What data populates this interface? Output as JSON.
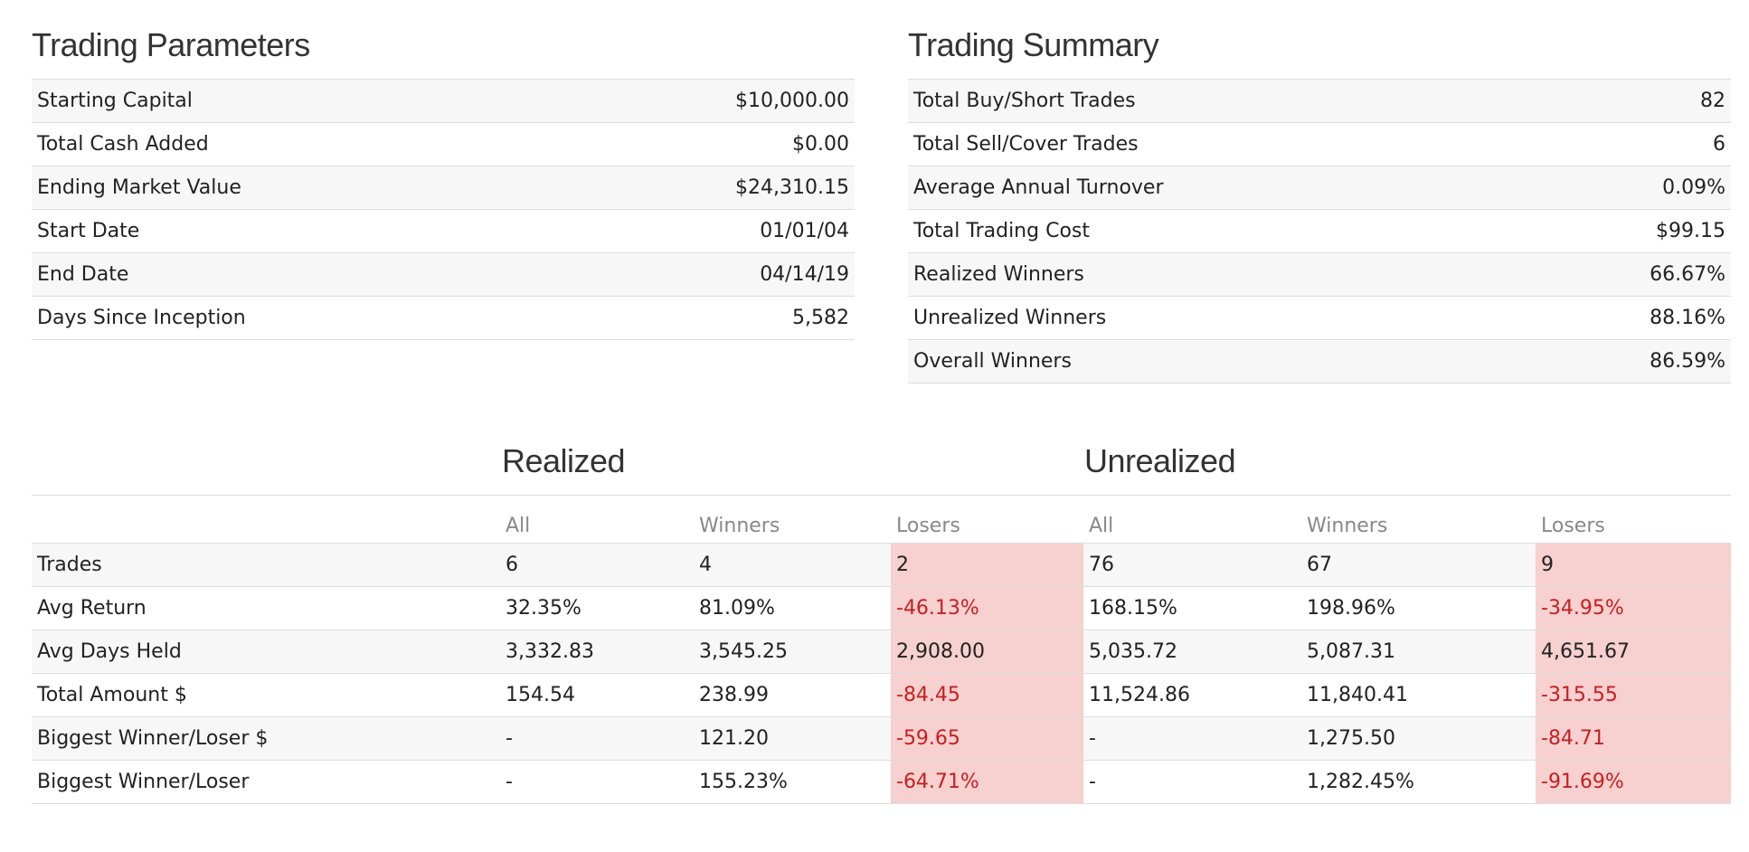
{
  "parameters": {
    "title": "Trading Parameters",
    "rows": [
      {
        "label": "Starting Capital",
        "value": "$10,000.00"
      },
      {
        "label": "Total Cash Added",
        "value": "$0.00"
      },
      {
        "label": "Ending Market Value",
        "value": "$24,310.15"
      },
      {
        "label": "Start Date",
        "value": "01/01/04"
      },
      {
        "label": "End Date",
        "value": "04/14/19"
      },
      {
        "label": "Days Since Inception",
        "value": "5,582"
      }
    ]
  },
  "summary": {
    "title": "Trading Summary",
    "rows": [
      {
        "label": "Total Buy/Short Trades",
        "value": "82"
      },
      {
        "label": "Total Sell/Cover Trades",
        "value": "6"
      },
      {
        "label": "Average Annual Turnover",
        "value": "0.09%"
      },
      {
        "label": "Total Trading Cost",
        "value": "$99.15"
      },
      {
        "label": "Realized Winners",
        "value": "66.67%"
      },
      {
        "label": "Unrealized Winners",
        "value": "88.16%"
      },
      {
        "label": "Overall Winners",
        "value": "86.59%"
      }
    ]
  },
  "stats": {
    "realized_title": "Realized",
    "unrealized_title": "Unrealized",
    "columns": [
      "All",
      "Winners",
      "Losers",
      "All",
      "Winners",
      "Losers"
    ],
    "rows": [
      {
        "label": "Trades",
        "values": [
          "6",
          "4",
          "2",
          "76",
          "67",
          "9"
        ]
      },
      {
        "label": "Avg Return",
        "values": [
          "32.35%",
          "81.09%",
          "-46.13%",
          "168.15%",
          "198.96%",
          "-34.95%"
        ]
      },
      {
        "label": "Avg Days Held",
        "values": [
          "3,332.83",
          "3,545.25",
          "2,908.00",
          "5,035.72",
          "5,087.31",
          "4,651.67"
        ]
      },
      {
        "label": "Total Amount $",
        "values": [
          "154.54",
          "238.99",
          "-84.45",
          "11,524.86",
          "11,840.41",
          "-315.55"
        ]
      },
      {
        "label": "Biggest Winner/Loser $",
        "values": [
          "-",
          "121.20",
          "-59.65",
          "-",
          "1,275.50",
          "-84.71"
        ]
      },
      {
        "label": "Biggest Winner/Loser",
        "values": [
          "-",
          "155.23%",
          "-64.71%",
          "-",
          "1,282.45%",
          "-91.69%"
        ]
      }
    ]
  },
  "colors": {
    "loser_cell_bg": "#f7d0d0",
    "negative_text": "#c62020",
    "stripe_bg": "#f7f7f7",
    "rule": "#dddddd"
  }
}
